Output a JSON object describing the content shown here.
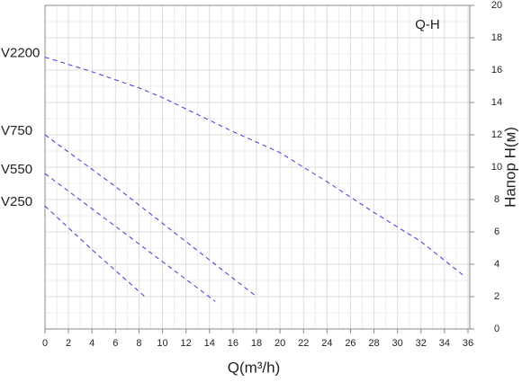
{
  "chart_data": {
    "type": "line",
    "title": "Q-H",
    "x_label": "Q(m³/h)",
    "y_label": "Напор H(м)",
    "xlim": [
      0,
      36
    ],
    "ylim": [
      0,
      20
    ],
    "xticks": [
      0,
      2,
      4,
      6,
      8,
      10,
      12,
      14,
      16,
      18,
      20,
      22,
      24,
      26,
      28,
      30,
      32,
      34,
      36
    ],
    "yticks": [
      0,
      2,
      4,
      6,
      8,
      10,
      12,
      14,
      16,
      18,
      20
    ],
    "grid": true,
    "y_axis_side": "right",
    "line_style": "dashed",
    "series": [
      {
        "name": "V2200",
        "color": "#3b3bd8",
        "x": [
          0,
          4,
          8,
          10,
          12,
          16,
          20,
          24,
          28,
          32,
          35.8
        ],
        "values": [
          16.8,
          15.9,
          14.9,
          14.3,
          13.6,
          12.2,
          10.9,
          9.1,
          7.2,
          5.4,
          3.2
        ]
      },
      {
        "name": "V750",
        "color": "#3b3bd8",
        "x": [
          0,
          6,
          12,
          18
        ],
        "values": [
          12,
          8.8,
          5.4,
          2
        ]
      },
      {
        "name": "V550",
        "color": "#3b3bd8",
        "x": [
          0,
          7,
          14.5
        ],
        "values": [
          9.6,
          5.8,
          1.7
        ]
      },
      {
        "name": "V250",
        "color": "#3b3bd8",
        "x": [
          0,
          4,
          8.5
        ],
        "values": [
          7.6,
          4.9,
          2
        ]
      }
    ]
  }
}
